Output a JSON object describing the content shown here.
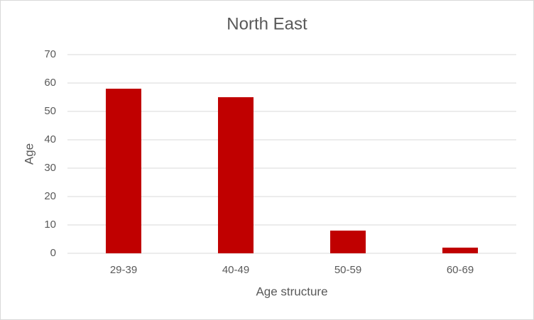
{
  "chart_data": {
    "type": "bar",
    "title": "North East",
    "x_label": "Age structure",
    "y_label": "Age",
    "categories": [
      "29-39",
      "40-49",
      "50-59",
      "60-69"
    ],
    "values": [
      58,
      55,
      8,
      2
    ],
    "color": "#c00000",
    "ylim": [
      0,
      70
    ],
    "yticks": [
      0,
      10,
      20,
      30,
      40,
      50,
      60,
      70
    ],
    "grid": true
  }
}
